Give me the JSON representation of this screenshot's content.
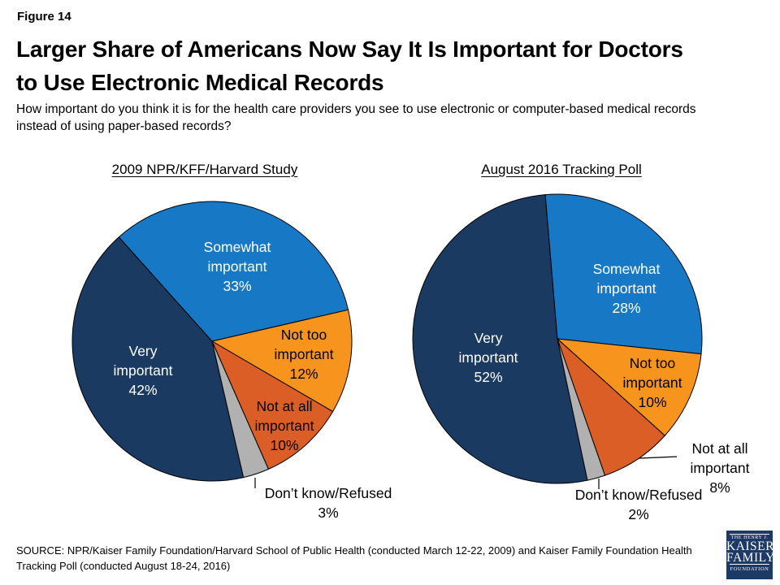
{
  "figure_label": "Figure 14",
  "title_line1": "Larger Share of Americans Now Say It Is Important for Doctors",
  "title_line2": "to Use Electronic Medical Records",
  "subtitle": "How important do you think it is for the health care providers you see to use electronic or computer-based medical records instead of using paper-based records?",
  "source": "SOURCE: NPR/Kaiser Family Foundation/Harvard School of Public Health (conducted March 12-22, 2009) and Kaiser Family Foundation Health Tracking Poll (conducted August 18-24, 2016)",
  "logo": {
    "top": "THE HENRY J.",
    "name1": "KAISER",
    "name2": "FAMILY",
    "bottom": "FOUNDATION"
  },
  "palette": {
    "very_important": "#1B3A62",
    "somewhat_important": "#1779C6",
    "not_too_important": "#F7941D",
    "not_at_all_important": "#DB5E26",
    "dont_know_refused": "#B1B1B1",
    "slice_outline": "#000000"
  },
  "chart_data": [
    {
      "type": "pie",
      "title": "2009 NPR/KFF/Harvard Study",
      "legend": "none",
      "labels_on_slices": true,
      "start_angle": 167,
      "slices": [
        {
          "label": "Very important",
          "label_lines": [
            "Very",
            "important"
          ],
          "value": 42,
          "pct": "42%",
          "color": "#1B3A62",
          "label_color": "#FFFFFF"
        },
        {
          "label": "Somewhat important",
          "label_lines": [
            "Somewhat",
            "important"
          ],
          "value": 33,
          "pct": "33%",
          "color": "#1779C6",
          "label_color": "#FFFFFF"
        },
        {
          "label": "Not too important",
          "label_lines": [
            "Not too",
            "important"
          ],
          "value": 12,
          "pct": "12%",
          "color": "#F7941D",
          "label_color": "#000000"
        },
        {
          "label": "Not at all important",
          "label_lines": [
            "Not at all",
            "important"
          ],
          "value": 10,
          "pct": "10%",
          "color": "#DB5E26",
          "label_color": "#000000"
        },
        {
          "label": "Don’t know/Refused",
          "label_lines": null,
          "value": 3,
          "pct": "3%",
          "color": "#B1B1B1",
          "label_color": "#000000"
        }
      ]
    },
    {
      "type": "pie",
      "title": "August 2016 Tracking Poll",
      "legend": "none",
      "labels_on_slices": true,
      "start_angle": 168,
      "slices": [
        {
          "label": "Very important",
          "label_lines": [
            "Very",
            "important"
          ],
          "value": 52,
          "pct": "52%",
          "color": "#1B3A62",
          "label_color": "#FFFFFF"
        },
        {
          "label": "Somewhat important",
          "label_lines": [
            "Somewhat",
            "important"
          ],
          "value": 28,
          "pct": "28%",
          "color": "#1779C6",
          "label_color": "#FFFFFF"
        },
        {
          "label": "Not too important",
          "label_lines": [
            "Not too",
            "important"
          ],
          "value": 10,
          "pct": "10%",
          "color": "#F7941D",
          "label_color": "#000000"
        },
        {
          "label": "Not at all important",
          "label_lines": null,
          "value": 8,
          "pct": "8%",
          "color": "#DB5E26",
          "label_color": "#000000"
        },
        {
          "label": "Don’t know/Refused",
          "label_lines": null,
          "value": 2,
          "pct": "2%",
          "color": "#B1B1B1",
          "label_color": "#000000"
        }
      ]
    }
  ]
}
